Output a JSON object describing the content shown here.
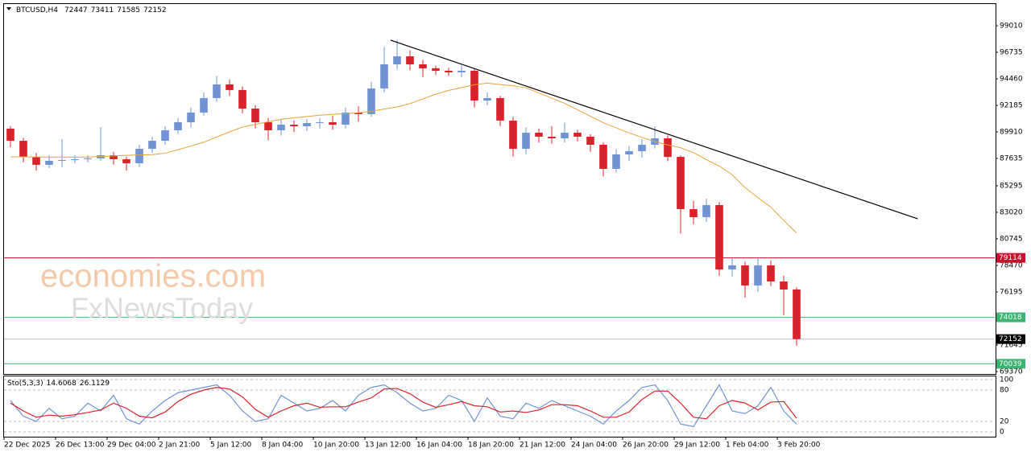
{
  "header": {
    "symbol": "BTCUSD,H4",
    "open": 72447,
    "high": 73411,
    "low": 71585,
    "close": 72152
  },
  "watermark": [
    "economies.com",
    "FxNewsToday"
  ],
  "chart_data": [
    {
      "type": "candlestick",
      "categories": [
        "22 Dec 2025",
        null,
        null,
        null,
        "26 Dec 13:00",
        null,
        null,
        null,
        "29 Dec 04:00",
        null,
        null,
        null,
        "2 Jan 21:00",
        null,
        null,
        null,
        "5 Jan 12:00",
        null,
        null,
        null,
        "8 Jan 04:00",
        null,
        null,
        null,
        "10 Jan 20:00",
        null,
        null,
        null,
        "13 Jan 12:00",
        null,
        null,
        null,
        "16 Jan 04:00",
        null,
        null,
        null,
        "18 Jan 20:00",
        null,
        null,
        null,
        "21 Jan 12:00",
        null,
        null,
        null,
        "24 Jan 04:00",
        null,
        null,
        null,
        "26 Jan 20:00",
        null,
        null,
        null,
        "29 Jan 12:00",
        null,
        null,
        null,
        "1 Feb 04:00",
        null,
        null,
        null,
        "3 Feb 20:00",
        null
      ],
      "open": [
        90190,
        89150,
        87770,
        87090,
        87430,
        87500,
        87570,
        87640,
        87910,
        87570,
        87220,
        88460,
        89150,
        90050,
        90740,
        91570,
        92810,
        93980,
        93500,
        91910,
        90740,
        90050,
        90530,
        90390,
        90670,
        90740,
        90530,
        91570,
        91430,
        93630,
        95700,
        96390,
        95700,
        95360,
        95150,
        95010,
        95150,
        92600,
        92810,
        90880,
        88460,
        89840,
        89500,
        89360,
        89840,
        89500,
        88810,
        86740,
        87980,
        88260,
        88810,
        89360,
        87770,
        83290,
        82600,
        83640,
        78120,
        78470,
        76750,
        78470,
        77090,
        76400
      ],
      "high": [
        90400,
        89400,
        88100,
        87900,
        89300,
        87900,
        87900,
        90320,
        88200,
        87800,
        88800,
        89500,
        90400,
        91100,
        92000,
        93300,
        94700,
        94400,
        93800,
        92200,
        91100,
        91000,
        90900,
        91000,
        91100,
        91300,
        92000,
        92100,
        94200,
        97200,
        97800,
        96900,
        96100,
        95600,
        95400,
        95600,
        95300,
        93300,
        93000,
        91200,
        90300,
        90200,
        90400,
        90700,
        90100,
        89700,
        89000,
        88400,
        88700,
        89300,
        90400,
        89600,
        87900,
        84000,
        84200,
        83900,
        79100,
        78800,
        79100,
        78900,
        77600,
        76600
      ],
      "low": [
        88600,
        87300,
        86600,
        86800,
        86900,
        87200,
        87300,
        87400,
        87100,
        86600,
        86900,
        88100,
        88800,
        89700,
        90300,
        91300,
        92500,
        93000,
        91500,
        90200,
        89200,
        89600,
        89900,
        90000,
        90200,
        90100,
        90200,
        90800,
        91200,
        93300,
        95300,
        95200,
        94600,
        94800,
        94700,
        94600,
        92000,
        92200,
        90400,
        87800,
        88000,
        89000,
        88900,
        89000,
        89100,
        88200,
        86100,
        86400,
        87400,
        87700,
        88500,
        87400,
        81200,
        82000,
        82200,
        77600,
        77500,
        75700,
        76200,
        76700,
        74200,
        71585
      ],
      "close": [
        89150,
        87770,
        87090,
        87430,
        87500,
        87570,
        87640,
        87910,
        87570,
        87220,
        88460,
        89150,
        90050,
        90740,
        91570,
        92810,
        93980,
        93500,
        91910,
        90740,
        90050,
        90530,
        90390,
        90670,
        90740,
        90530,
        91570,
        91430,
        93630,
        95700,
        96390,
        95700,
        95360,
        95150,
        95010,
        95150,
        92600,
        92810,
        90880,
        88460,
        89840,
        89500,
        89360,
        89840,
        89500,
        88810,
        86740,
        87980,
        88260,
        88810,
        89360,
        87770,
        83290,
        82600,
        83640,
        78120,
        78470,
        76750,
        78470,
        77090,
        76400,
        72152
      ],
      "up_color": "#6f93d3",
      "down_color": "#d8232a",
      "ma": {
        "color": "#e8a33c",
        "values": [
          87770,
          87770,
          87760,
          87760,
          87750,
          87750,
          87760,
          87800,
          87850,
          87900,
          87940,
          87960,
          88080,
          88390,
          88700,
          89030,
          89470,
          89910,
          90330,
          90560,
          90780,
          90990,
          91120,
          91230,
          91340,
          91410,
          91480,
          91550,
          91690,
          91870,
          92050,
          92340,
          92740,
          93140,
          93470,
          93710,
          93950,
          94090,
          93970,
          93860,
          93690,
          93250,
          92800,
          92360,
          91810,
          91250,
          90700,
          90250,
          89830,
          89440,
          89080,
          88790,
          88560,
          88130,
          87530,
          86980,
          86240,
          85140,
          84270,
          83470,
          82320,
          81240
        ]
      },
      "trendline": {
        "color": "#000000",
        "x": [
          29.5,
          70.4
        ],
        "values": [
          97770,
          82460
        ]
      },
      "levels": [
        {
          "value": 79114,
          "color": "#c8102e"
        },
        {
          "value": 74018,
          "color": "#3cb371"
        },
        {
          "value": 70039,
          "color": "#3cb371"
        }
      ],
      "price_line_color": "#c0c0c0",
      "xlim": [
        -0.5,
        76.375
      ],
      "ylim": [
        69163,
        100871
      ],
      "yticks": [
        99010,
        96735,
        94460,
        92185,
        89910,
        87635,
        85295,
        83020,
        80745,
        78470,
        76195,
        71645,
        69370
      ]
    },
    {
      "type": "line",
      "title": "Sto(5,3,3)",
      "series": [
        {
          "color": "#6f93d3",
          "values": [
            60,
            30,
            20,
            45,
            25,
            30,
            55,
            40,
            70,
            25,
            15,
            40,
            60,
            75,
            80,
            85,
            90,
            70,
            40,
            20,
            25,
            70,
            55,
            40,
            45,
            60,
            40,
            70,
            85,
            90,
            75,
            55,
            40,
            45,
            70,
            60,
            20,
            65,
            30,
            25,
            55,
            45,
            60,
            50,
            40,
            30,
            15,
            40,
            60,
            85,
            90,
            60,
            15,
            10,
            50,
            90,
            40,
            35,
            50,
            85,
            40,
            14.6068
          ]
        },
        {
          "color": "#d8232a",
          "values": [
            55,
            40,
            28,
            32,
            30,
            33,
            37,
            42,
            55,
            45,
            30,
            27,
            38,
            58,
            72,
            80,
            85,
            82,
            67,
            43,
            28,
            40,
            50,
            55,
            47,
            48,
            48,
            57,
            65,
            82,
            83,
            73,
            57,
            47,
            52,
            58,
            50,
            48,
            38,
            40,
            37,
            42,
            52,
            52,
            50,
            40,
            28,
            28,
            38,
            62,
            78,
            78,
            55,
            28,
            25,
            50,
            60,
            55,
            42,
            57,
            58,
            26.1129
          ]
        }
      ],
      "ylim": [
        0,
        100
      ],
      "yticks": [
        0,
        20,
        80,
        100
      ]
    }
  ]
}
